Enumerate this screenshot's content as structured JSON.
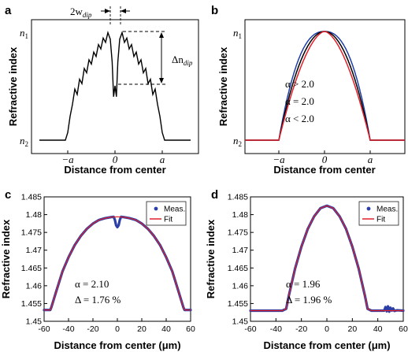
{
  "chart_data": [
    {
      "panel": "a",
      "type": "line",
      "ylabel": "Refractive index",
      "xlabel": "Distance from center",
      "x_ticks": [
        "−a",
        "0",
        "a"
      ],
      "y_ticks": [
        "n1",
        "n2"
      ],
      "annotations": {
        "dip_width": "2w",
        "dip_width_sub": "dip",
        "dip_depth": "Δn",
        "dip_depth_sub": "dip"
      },
      "series": [
        {
          "color": "#000000",
          "x": [
            -1.6,
            -1.05,
            -1.0,
            -0.95,
            -0.9,
            -0.85,
            -0.8,
            -0.75,
            -0.7,
            -0.65,
            -0.6,
            -0.55,
            -0.5,
            -0.45,
            -0.4,
            -0.35,
            -0.3,
            -0.25,
            -0.2,
            -0.15,
            -0.1,
            -0.06,
            -0.03,
            0.0,
            0.03,
            0.06,
            0.1,
            0.15,
            0.2,
            0.25,
            0.3,
            0.35,
            0.4,
            0.45,
            0.5,
            0.55,
            0.6,
            0.65,
            0.7,
            0.75,
            0.8,
            0.85,
            0.9,
            0.95,
            1.0,
            1.05,
            1.6
          ],
          "y": [
            0,
            0,
            0.07,
            0.22,
            0.33,
            0.47,
            0.42,
            0.56,
            0.52,
            0.66,
            0.62,
            0.74,
            0.7,
            0.81,
            0.77,
            0.88,
            0.84,
            0.94,
            0.9,
            0.99,
            0.93,
            0.72,
            0.4,
            0.5,
            0.4,
            0.72,
            0.93,
            0.99,
            0.9,
            0.94,
            0.84,
            0.88,
            0.77,
            0.81,
            0.7,
            0.74,
            0.62,
            0.66,
            0.52,
            0.56,
            0.42,
            0.47,
            0.33,
            0.22,
            0.07,
            0,
            0
          ]
        }
      ]
    },
    {
      "panel": "b",
      "type": "line",
      "ylabel": "Refractive index",
      "xlabel": "Distance from center",
      "x_ticks": [
        "−a",
        "0",
        "a"
      ],
      "y_ticks": [
        "n1",
        "n2"
      ],
      "legend": [
        {
          "label": "α > 2.0",
          "color": "#1f3ea8"
        },
        {
          "label": "α = 2.0",
          "color": "#000000"
        },
        {
          "label": "α < 2.0",
          "color": "#e0202a"
        }
      ],
      "series": [
        {
          "alpha": 2.4,
          "color": "#1f3ea8"
        },
        {
          "alpha": 2.0,
          "color": "#000000"
        },
        {
          "alpha": 1.7,
          "color": "#e0202a"
        }
      ]
    },
    {
      "panel": "c",
      "type": "line",
      "ylabel": "Refractive index",
      "xlabel": "Distance from center (μm)",
      "xlim": [
        -60,
        60
      ],
      "ylim": [
        1.45,
        1.485
      ],
      "x_ticks": [
        -60,
        -40,
        -20,
        0,
        20,
        40,
        60
      ],
      "y_ticks": [
        1.45,
        1.455,
        1.46,
        1.465,
        1.47,
        1.475,
        1.48,
        1.485
      ],
      "legend": [
        {
          "label": "Meas.",
          "color": "#2b3fa6"
        },
        {
          "label": "Fit",
          "color": "#e0202a"
        }
      ],
      "annotations": [
        "α = 2.10",
        "Δ = 1.76 %"
      ],
      "series": [
        {
          "name": "Meas.",
          "color": "#2b3fa6",
          "x": [
            -60,
            -57,
            -55,
            -54,
            -50,
            -45,
            -40,
            -35,
            -30,
            -25,
            -20,
            -15,
            -10,
            -5,
            -3,
            -2,
            -1,
            0,
            1,
            2,
            3,
            5,
            10,
            15,
            20,
            25,
            30,
            35,
            40,
            45,
            50,
            54,
            55,
            57,
            60
          ],
          "y": [
            1.4532,
            1.4532,
            1.4532,
            1.454,
            1.4585,
            1.464,
            1.468,
            1.4714,
            1.474,
            1.476,
            1.4775,
            1.4785,
            1.479,
            1.4793,
            1.4794,
            1.4785,
            1.477,
            1.4765,
            1.477,
            1.4785,
            1.4794,
            1.4793,
            1.479,
            1.4785,
            1.4775,
            1.476,
            1.474,
            1.4714,
            1.468,
            1.464,
            1.4585,
            1.454,
            1.4532,
            1.4532,
            1.4532
          ]
        },
        {
          "name": "Fit",
          "color": "#e0202a",
          "x": [
            -60,
            -55,
            -54,
            -50,
            -45,
            -40,
            -35,
            -30,
            -25,
            -20,
            -15,
            -10,
            -5,
            0,
            5,
            10,
            15,
            20,
            25,
            30,
            35,
            40,
            45,
            50,
            54,
            55,
            60
          ],
          "y": [
            1.4532,
            1.4532,
            1.454,
            1.4585,
            1.464,
            1.468,
            1.4714,
            1.474,
            1.476,
            1.4775,
            1.4785,
            1.479,
            1.4793,
            1.4794,
            1.4793,
            1.479,
            1.4785,
            1.4775,
            1.476,
            1.474,
            1.4714,
            1.468,
            1.464,
            1.4585,
            1.454,
            1.4532,
            1.4532
          ]
        }
      ]
    },
    {
      "panel": "d",
      "type": "line",
      "ylabel": "Refractive index",
      "xlabel": "Distance from center (μm)",
      "xlim": [
        -60,
        60
      ],
      "ylim": [
        1.45,
        1.485
      ],
      "x_ticks": [
        -60,
        -40,
        -20,
        0,
        20,
        40,
        60
      ],
      "y_ticks": [
        1.45,
        1.455,
        1.46,
        1.465,
        1.47,
        1.475,
        1.48,
        1.485
      ],
      "legend": [
        {
          "label": "Meas.",
          "color": "#2b3fa6"
        },
        {
          "label": "Fit",
          "color": "#e0202a"
        }
      ],
      "annotations": [
        "α = 1.96",
        "Δ = 1.96 %"
      ],
      "series": [
        {
          "name": "Meas.",
          "color": "#2b3fa6",
          "x": [
            -60,
            -40,
            -35,
            -32,
            -30,
            -25,
            -20,
            -15,
            -10,
            -5,
            0,
            5,
            10,
            15,
            20,
            25,
            30,
            32,
            35,
            40,
            45,
            46,
            47,
            48,
            49,
            50,
            51,
            52,
            53,
            55,
            60
          ],
          "y": [
            1.453,
            1.453,
            1.453,
            1.4535,
            1.457,
            1.4648,
            1.471,
            1.476,
            1.4795,
            1.4818,
            1.4825,
            1.4818,
            1.4795,
            1.476,
            1.471,
            1.4648,
            1.457,
            1.4535,
            1.453,
            1.453,
            1.453,
            1.454,
            1.4528,
            1.4542,
            1.4527,
            1.4538,
            1.453,
            1.4536,
            1.4529,
            1.4531,
            1.453
          ]
        },
        {
          "name": "Fit",
          "color": "#e0202a",
          "x": [
            -60,
            -35,
            -32,
            -30,
            -25,
            -20,
            -15,
            -10,
            -5,
            0,
            5,
            10,
            15,
            20,
            25,
            30,
            32,
            35,
            60
          ],
          "y": [
            1.453,
            1.453,
            1.4535,
            1.457,
            1.4648,
            1.471,
            1.476,
            1.4795,
            1.4818,
            1.4825,
            1.4818,
            1.4795,
            1.476,
            1.471,
            1.4648,
            1.457,
            1.4535,
            1.453,
            1.453
          ]
        }
      ]
    }
  ]
}
